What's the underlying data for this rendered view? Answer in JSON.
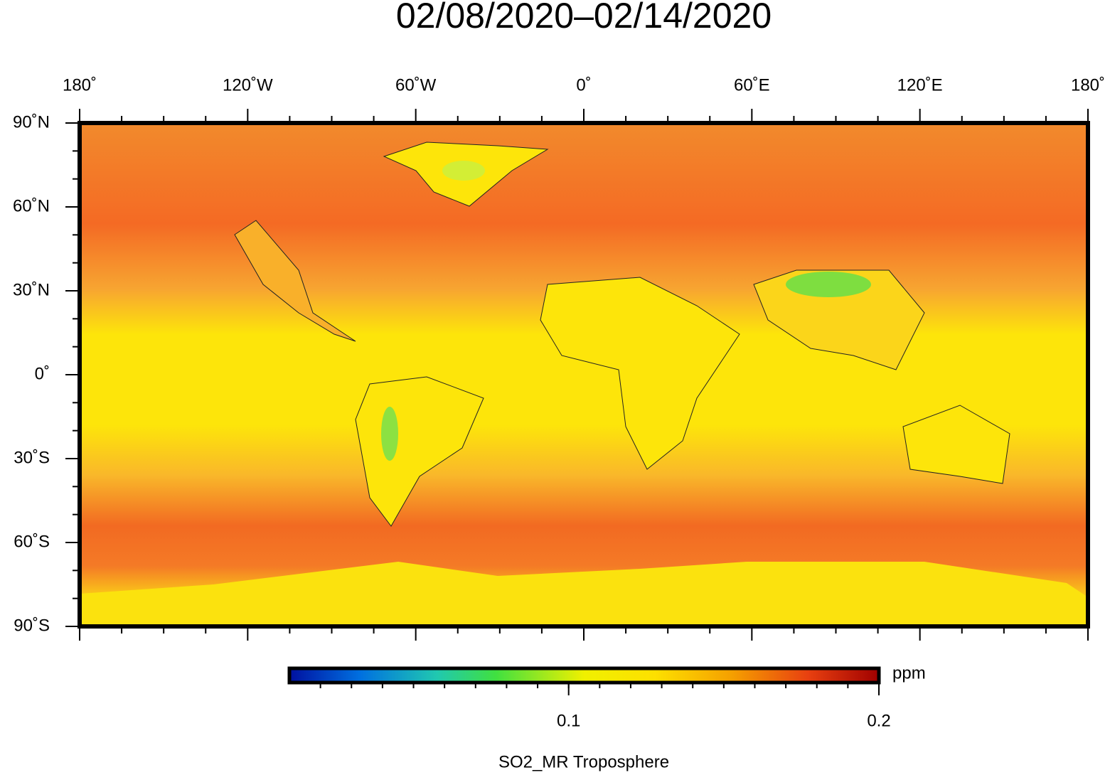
{
  "header": {
    "title": "02/08/2020–02/14/2020"
  },
  "map": {
    "lon_labels": [
      "180˚",
      "120˚W",
      "60˚W",
      "0˚",
      "60˚E",
      "120˚E",
      "180˚"
    ],
    "lat_labels": [
      "90˚N",
      "60˚N",
      "30˚N",
      "0˚",
      "30˚S",
      "60˚S",
      "90˚S"
    ]
  },
  "colorbar": {
    "range": [
      0.01,
      0.2
    ],
    "ticks": [
      0.1,
      0.2
    ],
    "unit": "ppm",
    "label": "SO2_MR Troposphere"
  }
}
